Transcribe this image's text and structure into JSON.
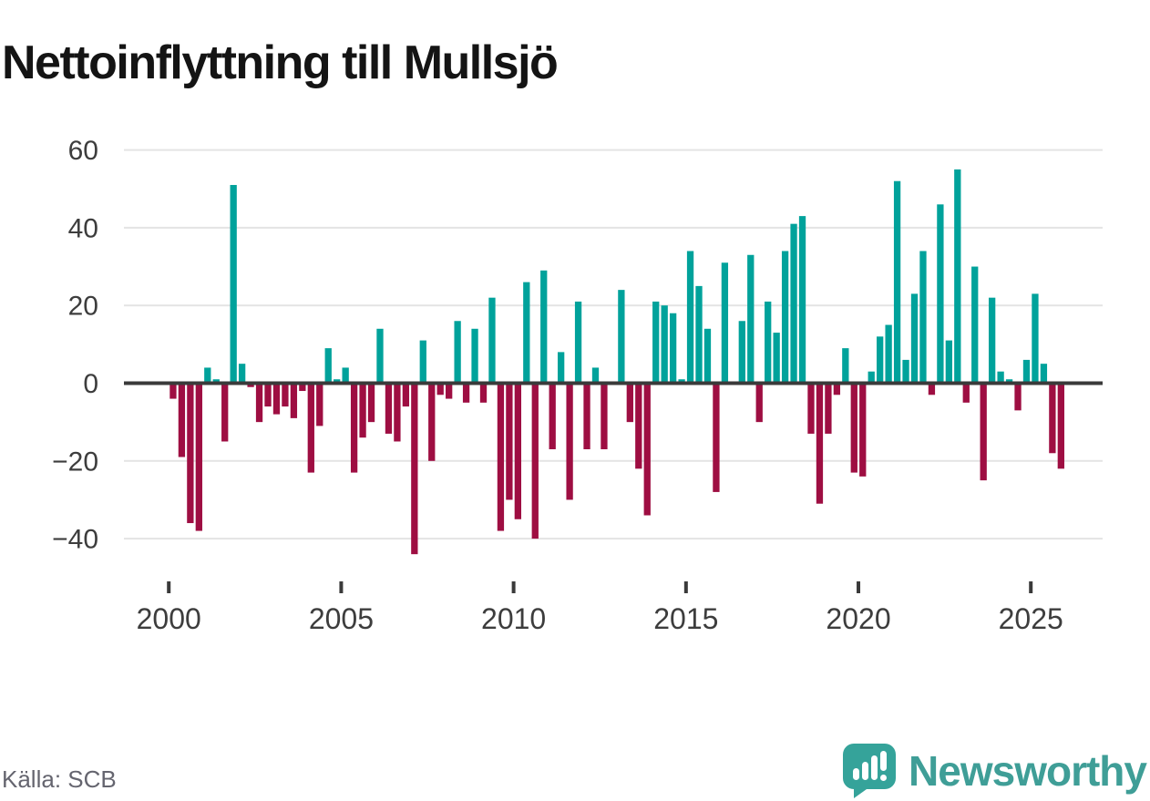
{
  "title": "Nettoinflyttning till Mullsjö",
  "source": "Källa: SCB",
  "brand": {
    "name": "Newsworthy",
    "logo_color": "#35a39a",
    "logo_tail_color": "#2d948c",
    "text_color": "#3f9e97"
  },
  "chart_data": {
    "type": "bar",
    "title": "Nettoinflyttning till Mullsjö",
    "frequency": "quarterly",
    "start_year": 2000,
    "end_year": 2025,
    "x_tick_labels": [
      "2000",
      "2005",
      "2010",
      "2015",
      "2020",
      "2025"
    ],
    "y_ticks": [
      60,
      40,
      20,
      0,
      -20,
      -40
    ],
    "y_tick_labels": [
      "60",
      "40",
      "20",
      "0",
      "−20",
      "−40"
    ],
    "ylim": [
      -48,
      64
    ],
    "grid": "horizontal",
    "legend": "none",
    "positive_color": "#00a29b",
    "negative_color": "#9e0e42",
    "zero_line_color": "#3a3a3a",
    "grid_color": "#e4e4e4",
    "axis_text_color": "#3d3d3d",
    "values": [
      -4,
      -19,
      -36,
      -38,
      4,
      1,
      -15,
      51,
      5,
      -1,
      -10,
      -6,
      -8,
      -6,
      -9,
      -2,
      -23,
      -11,
      9,
      1,
      4,
      -23,
      -14,
      -10,
      14,
      -13,
      -15,
      -6,
      -44,
      11,
      -20,
      -3,
      -4,
      16,
      -5,
      14,
      -5,
      22,
      -38,
      -30,
      -35,
      26,
      -40,
      29,
      -17,
      8,
      -30,
      21,
      -17,
      4,
      -17,
      0,
      24,
      -10,
      -22,
      -34,
      21,
      20,
      18,
      1,
      34,
      25,
      14,
      -28,
      31,
      0,
      16,
      33,
      -10,
      21,
      13,
      34,
      41,
      43,
      -13,
      -31,
      -13,
      -3,
      9,
      -23,
      -24,
      3,
      12,
      15,
      52,
      6,
      23,
      34,
      -3,
      46,
      11,
      55,
      -5,
      30,
      -25,
      22,
      3,
      1,
      -7,
      6,
      23,
      5,
      -18,
      -22
    ]
  }
}
